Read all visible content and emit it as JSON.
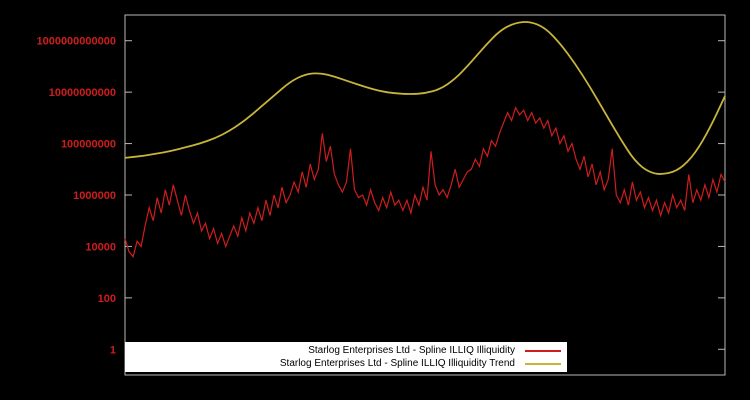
{
  "window": {
    "background": "#000000"
  },
  "chart_data": {
    "type": "line",
    "title": "",
    "xlabel": "",
    "ylabel": "",
    "y_scale": "log10",
    "ylim": [
      0.1,
      10000000000000.0
    ],
    "grid": false,
    "legend_position": "bottom-center",
    "axis": {
      "border_color": "#b8b8b8",
      "tick_label_color": "#cf1d1d",
      "x_tick_labels": []
    },
    "y_tick_labels": [
      {
        "label": "1",
        "value": 1
      },
      {
        "label": "100",
        "value": 100
      },
      {
        "label": "10000",
        "value": 10000
      },
      {
        "label": "1000000",
        "value": 1000000
      },
      {
        "label": "100000000",
        "value": 100000000
      },
      {
        "label": "10000000000",
        "value": 10000000000
      },
      {
        "label": "1000000000000",
        "value": 1000000000000
      }
    ],
    "series": [
      {
        "name": "Starlog Enterprises Ltd - Spline ILLIQ Illiquidity",
        "color": "#cf1d1d",
        "line_width": 1.2,
        "smooth": false,
        "values": [
          20000.0,
          6300.0,
          4000.0,
          16000.0,
          10000.0,
          63000.0,
          320000.0,
          100000.0,
          790000.0,
          200000.0,
          1600000.0,
          400000.0,
          2500000.0,
          630000.0,
          160000.0,
          1000000.0,
          250000.0,
          79000.0,
          200000.0,
          40000.0,
          79000.0,
          20000.0,
          50000.0,
          13000.0,
          32000.0,
          10000.0,
          25000.0,
          63000.0,
          25000.0,
          130000.0,
          40000.0,
          200000.0,
          79000.0,
          320000.0,
          100000.0,
          630000.0,
          160000.0,
          1000000.0,
          320000.0,
          2000000.0,
          500000.0,
          1000000.0,
          3200000.0,
          1300000.0,
          7900000.0,
          2000000.0,
          16000000.0,
          4000000.0,
          10000000.0,
          250000000.0,
          20000000.0,
          79000000.0,
          6300000.0,
          2500000.0,
          1300000.0,
          3200000.0,
          63000000.0,
          1600000.0,
          790000.0,
          1000000.0,
          400000.0,
          1600000.0,
          500000.0,
          250000.0,
          790000.0,
          320000.0,
          1300000.0,
          400000.0,
          630000.0,
          250000.0,
          630000.0,
          200000.0,
          1000000.0,
          400000.0,
          2000000.0,
          630000.0,
          50000000.0,
          2500000.0,
          1000000.0,
          1600000.0,
          790000.0,
          2500000.0,
          10000000.0,
          2000000.0,
          4000000.0,
          7900000.0,
          10000000.0,
          25000000.0,
          13000000.0,
          63000000.0,
          32000000.0,
          130000000.0,
          79000000.0,
          250000000.0,
          630000000.0,
          1600000000.0,
          790000000.0,
          2500000000.0,
          1300000000.0,
          2000000000.0,
          790000000.0,
          1600000000.0,
          630000000.0,
          1000000000.0,
          400000000.0,
          790000000.0,
          200000000.0,
          400000000.0,
          100000000.0,
          200000000.0,
          50000000.0,
          100000000.0,
          25000000.0,
          10000000.0,
          32000000.0,
          5000000.0,
          16000000.0,
          2500000.0,
          7900000.0,
          1600000.0,
          4000000.0,
          63000000.0,
          1000000.0,
          500000.0,
          1600000.0,
          400000.0,
          3200000.0,
          630000.0,
          1300000.0,
          320000.0,
          790000.0,
          250000.0,
          630000.0,
          160000.0,
          500000.0,
          200000.0,
          1000000.0,
          320000.0,
          630000.0,
          250000.0,
          6300000.0,
          500000.0,
          1600000.0,
          630000.0,
          2500000.0,
          790000.0,
          4000000.0,
          1300000.0,
          6300000.0,
          3200000.0
        ]
      },
      {
        "name": "Starlog Enterprises Ltd - Spline ILLIQ Illiquidity Trend",
        "color": "#c9b43a",
        "line_width": 1.8,
        "smooth": true,
        "values": [
          28000000.0,
          32000000.0,
          40000000.0,
          50000000.0,
          71000000.0,
          100000000.0,
          160000000.0,
          320000000.0,
          790000000.0,
          2500000000.0,
          7900000000.0,
          25000000000.0,
          50000000000.0,
          56000000000.0,
          40000000000.0,
          25000000000.0,
          16000000000.0,
          11000000000.0,
          8900000000.0,
          8300000000.0,
          8900000000.0,
          13000000000.0,
          32000000000.0,
          130000000000.0,
          630000000000.0,
          2500000000000.0,
          5000000000000.0,
          5600000000000.0,
          3200000000000.0,
          790000000000.0,
          130000000000.0,
          16000000000.0,
          1600000000.0,
          160000000.0,
          20000000.0,
          7100000.0,
          6300000.0,
          10000000.0,
          40000000.0,
          400000000.0,
          7100000000.0
        ]
      }
    ]
  }
}
